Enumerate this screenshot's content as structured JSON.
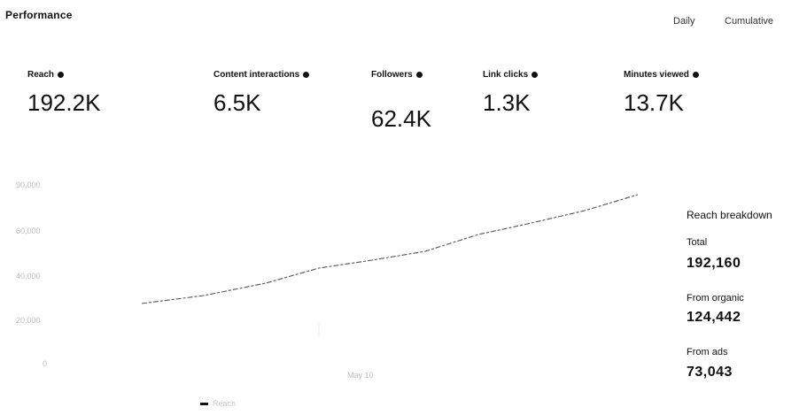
{
  "header": {
    "title": "Performance",
    "toggle_daily": "Daily",
    "toggle_cumulative": "Cumulative"
  },
  "metrics": [
    {
      "label": "Reach",
      "value": "192.2K"
    },
    {
      "label": "Content interactions",
      "value": "6.5K"
    },
    {
      "label": "Followers",
      "value": "62.4K"
    },
    {
      "label": "Link clicks",
      "value": "1.3K"
    },
    {
      "label": "Minutes viewed",
      "value": "13.7K"
    }
  ],
  "chart": {
    "y_ticks": [
      "90,000",
      "60,000",
      "40,000",
      "20,000",
      "0"
    ],
    "x_label": "May 10",
    "legend": [
      "Reach",
      "",
      ""
    ],
    "line_color": "#555555"
  },
  "breakdown": {
    "title": "Reach breakdown",
    "total_label": "Total",
    "total_value": "192,160",
    "organic_label": "From organic",
    "organic_value": "124,442",
    "ads_label": "From ads",
    "ads_value": "73,043"
  }
}
